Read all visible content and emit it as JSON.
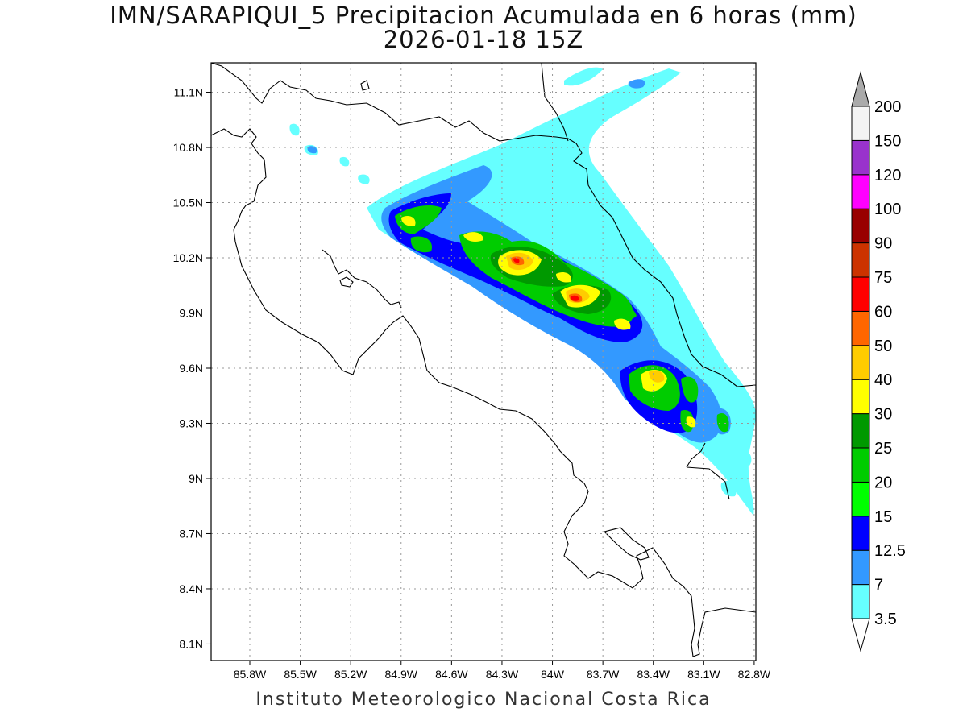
{
  "title": {
    "line1": "IMN/SARAPIQUI_5 Precipitacion Acumulada en 6 horas (mm)",
    "line2": "2026-01-18 15Z"
  },
  "footer": "Instituto Meteorologico Nacional Costa Rica",
  "map": {
    "lon_range": [
      -86.03,
      -82.79
    ],
    "lat_range": [
      8.01,
      11.26
    ],
    "lat_ticks": [
      "11.1N",
      "10.8N",
      "10.5N",
      "10.2N",
      "9.9N",
      "9.6N",
      "9.3N",
      "9N",
      "8.7N",
      "8.4N",
      "8.1N"
    ],
    "lon_ticks": [
      "85.8W",
      "85.5W",
      "85.2W",
      "84.9W",
      "84.6W",
      "84.3W",
      "84W",
      "83.7W",
      "83.4W",
      "83.1W",
      "82.8W"
    ],
    "grid": "dotted"
  },
  "colorbar": {
    "levels": [
      "3.5",
      "7",
      "12.5",
      "15",
      "20",
      "25",
      "30",
      "40",
      "50",
      "60",
      "75",
      "90",
      "100",
      "120",
      "150",
      "200"
    ],
    "colors": [
      "#66ffff",
      "#3399ff",
      "#0000ff",
      "#00ff00",
      "#00cc00",
      "#009900",
      "#ffff00",
      "#ffcc00",
      "#ff6600",
      "#ff0000",
      "#cc3300",
      "#990000",
      "#ff00ff",
      "#9933cc",
      "#f4f4f4",
      "#aaaaaa"
    ]
  }
}
